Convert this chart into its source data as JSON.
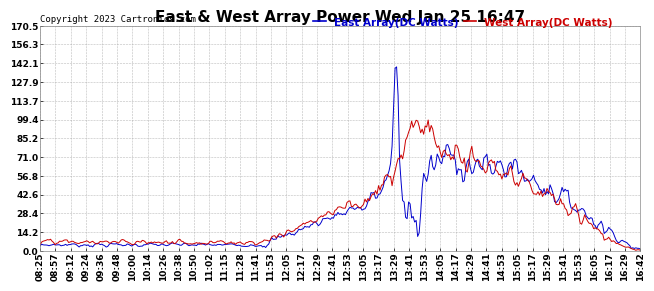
{
  "title": "East & West Array Power Wed Jan 25 16:47",
  "copyright": "Copyright 2023 Cartronics.com",
  "east_label": "East Array(DC Watts)",
  "west_label": "West Array(DC Watts)",
  "east_color": "#0000cc",
  "west_color": "#cc0000",
  "background_color": "#ffffff",
  "grid_color": "#aaaaaa",
  "ylim": [
    0.0,
    170.5
  ],
  "yticks": [
    0.0,
    14.2,
    28.4,
    42.6,
    56.8,
    71.0,
    85.2,
    99.4,
    113.7,
    127.9,
    142.1,
    156.3,
    170.5
  ],
  "title_fontsize": 11,
  "label_fontsize": 7.5,
  "tick_fontsize": 6.5,
  "copyright_fontsize": 6.5,
  "x_tick_labels": [
    "08:25",
    "08:57",
    "09:12",
    "09:24",
    "09:36",
    "09:48",
    "10:00",
    "10:14",
    "10:26",
    "10:38",
    "10:50",
    "11:02",
    "11:15",
    "11:28",
    "11:41",
    "11:53",
    "12:05",
    "12:17",
    "12:29",
    "12:41",
    "12:53",
    "13:05",
    "13:17",
    "13:29",
    "13:41",
    "13:53",
    "14:05",
    "14:17",
    "14:29",
    "14:41",
    "14:53",
    "15:05",
    "15:17",
    "15:29",
    "15:41",
    "15:53",
    "16:05",
    "16:17",
    "16:29",
    "16:42"
  ]
}
